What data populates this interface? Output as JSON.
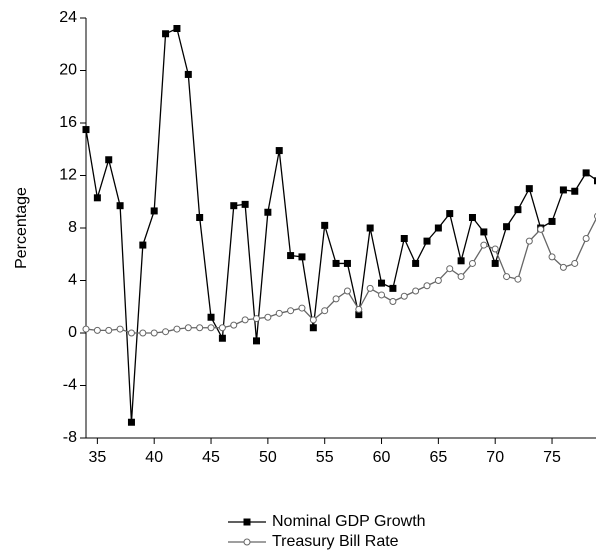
{
  "chart_data": {
    "type": "line",
    "y_label": "Percentage",
    "x": [
      34,
      35,
      36,
      37,
      38,
      39,
      40,
      41,
      42,
      43,
      44,
      45,
      46,
      47,
      48,
      49,
      50,
      51,
      52,
      53,
      54,
      55,
      56,
      57,
      58,
      59,
      60,
      61,
      62,
      63,
      64,
      65,
      66,
      67,
      68,
      69,
      70,
      71,
      72,
      73,
      74,
      75,
      76,
      77,
      78,
      79
    ],
    "series": [
      {
        "name": "Nominal GDP Growth",
        "color": "#000000",
        "marker": "filled-square",
        "values": [
          15.5,
          10.3,
          13.2,
          9.7,
          -6.8,
          6.7,
          9.3,
          22.8,
          23.2,
          19.7,
          8.8,
          1.2,
          -0.4,
          9.7,
          9.8,
          -0.6,
          9.2,
          13.9,
          5.9,
          5.8,
          0.4,
          8.2,
          5.3,
          5.3,
          1.4,
          8.0,
          3.8,
          3.4,
          7.2,
          5.3,
          7.0,
          8.0,
          9.1,
          5.5,
          8.8,
          7.7,
          5.3,
          8.1,
          9.4,
          11.0,
          8.0,
          8.5,
          10.9,
          10.8,
          12.2,
          11.6
        ]
      },
      {
        "name": "Treasury Bill Rate",
        "color": "#666666",
        "marker": "open-circle",
        "values": [
          0.3,
          0.2,
          0.2,
          0.3,
          0.0,
          0.0,
          0.0,
          0.1,
          0.3,
          0.4,
          0.4,
          0.4,
          0.4,
          0.6,
          1.0,
          1.1,
          1.2,
          1.5,
          1.7,
          1.9,
          1.0,
          1.7,
          2.6,
          3.2,
          1.8,
          3.4,
          2.9,
          2.4,
          2.8,
          3.2,
          3.6,
          4.0,
          4.9,
          4.3,
          5.3,
          6.7,
          6.4,
          4.3,
          4.1,
          7.0,
          7.9,
          5.8,
          5.0,
          5.3,
          7.2,
          8.9
        ]
      }
    ],
    "xlim": [
      34,
      79
    ],
    "xticks": [
      35,
      40,
      45,
      50,
      55,
      60,
      65,
      70,
      75
    ],
    "ylim": [
      -8,
      24
    ],
    "yticks": [
      -8,
      -4,
      0,
      4,
      8,
      12,
      16,
      20,
      24
    ],
    "legend_position": "bottom"
  }
}
